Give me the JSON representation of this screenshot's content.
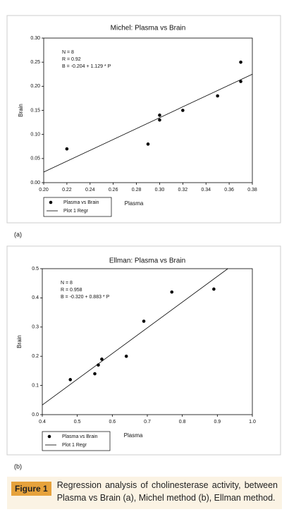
{
  "chart_data": [
    {
      "type": "scatter",
      "title": "Michel: Plasma vs Brain",
      "x_label": "Plasma",
      "y_label": "Brain",
      "xlim": [
        0.2,
        0.38
      ],
      "xticks": [
        {
          "value": 0.2,
          "label": "0.20"
        },
        0.22,
        0.24,
        0.26,
        0.28,
        {
          "value": 0.3,
          "label": "0.30"
        },
        0.32,
        0.34,
        0.36,
        0.38
      ],
      "ylim": [
        0,
        0.3
      ],
      "yticks": [
        {
          "value": 0,
          "label": "0.00"
        },
        0.05,
        {
          "value": 0.1,
          "label": "0.10"
        },
        0.15,
        {
          "value": 0.2,
          "label": "0.20"
        },
        0.25,
        {
          "value": 0.3,
          "label": "0.30"
        }
      ],
      "annotations": [
        "N = 8",
        "R = 0.92",
        "B = -0.204 + 1.129 * P"
      ],
      "series": [
        {
          "name": "Plasma vs Brain",
          "color": "#000000",
          "x": [
            0.22,
            0.29,
            0.3,
            0.3,
            0.32,
            0.35,
            0.37,
            0.37
          ],
          "values": [
            0.07,
            0.08,
            0.14,
            0.13,
            0.15,
            0.18,
            0.25,
            0.21
          ]
        },
        {
          "name": "Plot 1 Regr",
          "color": "#000000",
          "x": [
            0.2,
            0.38
          ],
          "values": [
            0.022,
            0.225
          ]
        }
      ]
    },
    {
      "type": "scatter",
      "title": "Ellman: Plasma vs Brain",
      "x_label": "Plasma",
      "y_label": "Brain",
      "xlim": [
        0.4,
        1.0
      ],
      "xticks": [
        0.4,
        0.5,
        0.6,
        0.7,
        0.8,
        0.9,
        {
          "value": 1.0,
          "label": "1.0"
        }
      ],
      "ylim": [
        0,
        0.5
      ],
      "yticks": [
        {
          "value": 0,
          "label": "0.0"
        },
        0.1,
        0.2,
        0.3,
        0.4,
        0.5
      ],
      "annotations": [
        "N = 8",
        "R = 0.958",
        "B = -0.320 + 0.883 * P"
      ],
      "series": [
        {
          "name": "Plasma vs Brain",
          "color": "#000000",
          "x": [
            0.48,
            0.55,
            0.56,
            0.57,
            0.64,
            0.69,
            0.77,
            0.89
          ],
          "values": [
            0.12,
            0.14,
            0.17,
            0.19,
            0.2,
            0.32,
            0.42,
            0.43
          ]
        },
        {
          "name": "Plot 1 Regr",
          "color": "#000000",
          "x": [
            0.4,
            0.93
          ],
          "values": [
            0.033,
            0.5
          ]
        }
      ]
    }
  ],
  "panel_labels": [
    "(a)",
    "(b)"
  ],
  "figure_label": "Figure 1",
  "caption": "Regression analysis of cholinesterase activity, between Plasma vs Brain (a), Michel method (b), Ellman method."
}
